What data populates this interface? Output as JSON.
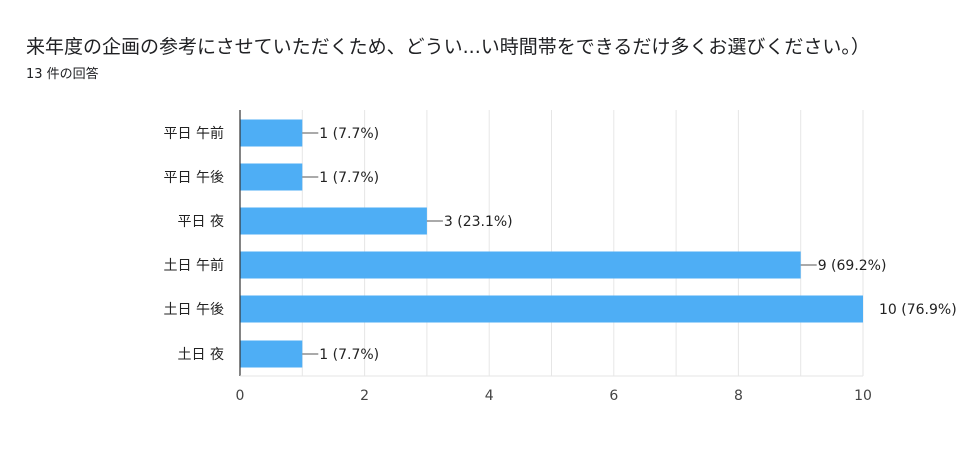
{
  "header": {
    "title": "来年度の企画の参考にさせていただくため、どうい...い時間帯をできるだけ多くお選びください。）",
    "response_count": "13 件の回答"
  },
  "colors": {
    "bar": "#4eaef5",
    "grid": "#e6e6e6",
    "axis": "#333333",
    "leader": "#555555"
  },
  "chart_data": {
    "type": "bar",
    "orientation": "horizontal",
    "title": "",
    "xlabel": "",
    "ylabel": "",
    "xlim": [
      0,
      10
    ],
    "x_ticks": [
      "0",
      "2",
      "4",
      "6",
      "8",
      "10"
    ],
    "grid": true,
    "categories": [
      "平日 午前",
      "平日 午後",
      "平日 夜",
      "土日 午前",
      "土日 午後",
      "土日 夜"
    ],
    "values": [
      1,
      1,
      3,
      9,
      10,
      1
    ],
    "data_labels": [
      "1 (7.7%)",
      "1 (7.7%)",
      "3 (23.1%)",
      "9 (69.2%)",
      "10 (76.9%)",
      "1 (7.7%)"
    ]
  }
}
